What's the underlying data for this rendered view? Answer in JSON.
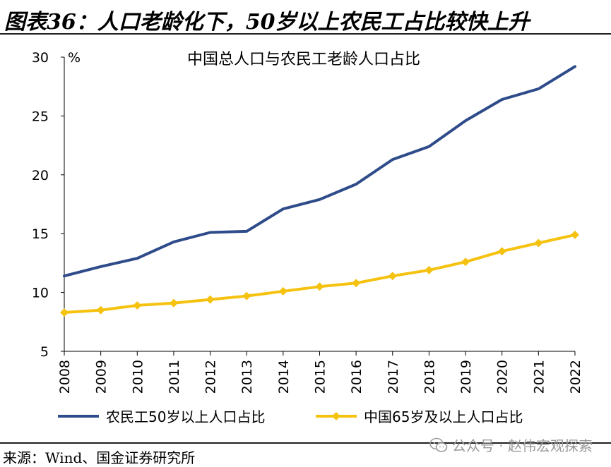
{
  "header": {
    "title": "图表36：人口老龄化下，50岁以上农民工占比较快上升"
  },
  "footer": {
    "source": "来源：Wind、国金证券研究所"
  },
  "watermark": {
    "text": "公众号 · 赵伟宏观探索",
    "icon": "wechat-icon"
  },
  "chart_data": {
    "type": "line",
    "title": "中国总人口与农民工老龄人口占比",
    "unit": "%",
    "x": [
      "2008",
      "2009",
      "2010",
      "2011",
      "2012",
      "2013",
      "2014",
      "2015",
      "2016",
      "2017",
      "2018",
      "2019",
      "2020",
      "2021",
      "2022"
    ],
    "ylim": [
      5,
      30
    ],
    "yticks": [
      5,
      10,
      15,
      20,
      25,
      30
    ],
    "grid": false,
    "legend": "bottom",
    "series": [
      {
        "name": "农民工50岁以上人口占比",
        "color": "#2e4b8a",
        "marker": "none",
        "values": [
          11.4,
          12.2,
          12.9,
          14.3,
          15.1,
          15.2,
          17.1,
          17.9,
          19.2,
          21.3,
          22.4,
          24.6,
          26.4,
          27.3,
          29.2
        ]
      },
      {
        "name": "中国65岁及以上人口占比",
        "color": "#f5c210",
        "marker": "diamond",
        "values": [
          8.3,
          8.5,
          8.9,
          9.1,
          9.4,
          9.7,
          10.1,
          10.5,
          10.8,
          11.4,
          11.9,
          12.6,
          13.5,
          14.2,
          14.9
        ]
      }
    ]
  }
}
